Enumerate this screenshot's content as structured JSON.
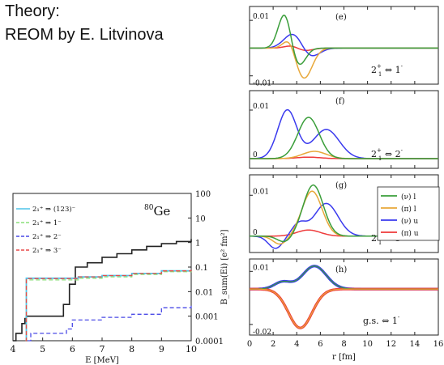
{
  "header": {
    "line1": "Theory:",
    "line2": "REOM by E. Litvinova"
  },
  "chart_data": [
    {
      "type": "line",
      "panel": "left",
      "title": "80Ge",
      "title_parts": {
        "sup": "80",
        "main": "Ge"
      },
      "xlabel": "E [MeV]",
      "ylabel": "B_sum(Ei) [e² fm²]",
      "xlim": [
        4,
        10
      ],
      "ylim": [
        0.0001,
        100
      ],
      "yscale": "log",
      "x_ticks": [
        "4",
        "5",
        "6",
        "7",
        "8",
        "9",
        "10"
      ],
      "y_ticks": [
        "0.0001",
        "0.001",
        "0.01",
        "0.1",
        "1",
        "10",
        "100"
      ],
      "colors": {
        "total": "#222222",
        "s123": "#4fc3e8",
        "s1": "#8be07a",
        "s2": "#4a4ae6",
        "s3": "#e84a4a"
      },
      "legend": [
        "2₁⁺ ⇒ (123)⁻",
        "2₁⁺ ⇒ 1⁻",
        "2₁⁺ ⇒ 2⁻",
        "2₁⁺ ⇒ 3⁻"
      ],
      "series": [
        {
          "key": "total",
          "x": [
            4.0,
            4.1,
            4.3,
            4.4,
            4.45,
            5.7,
            5.9,
            6.1,
            6.5,
            7.0,
            7.5,
            8.0,
            8.5,
            9.0,
            9.5,
            10.0
          ],
          "y": [
            0.0001,
            0.0002,
            0.0005,
            0.0008,
            0.001,
            0.003,
            0.02,
            0.1,
            0.15,
            0.25,
            0.35,
            0.5,
            0.7,
            0.9,
            1.1,
            1.4
          ]
        },
        {
          "key": "s123",
          "x": [
            4.42,
            4.45,
            5.8,
            6.2,
            7.0,
            8.0,
            9.0,
            10.0
          ],
          "y": [
            0.0001,
            0.035,
            0.035,
            0.04,
            0.045,
            0.055,
            0.07,
            0.08
          ]
        },
        {
          "key": "s1",
          "x": [
            4.42,
            4.45,
            5.8,
            6.2,
            7.0,
            8.0,
            9.0,
            10.0
          ],
          "y": [
            0.0001,
            0.03,
            0.03,
            0.035,
            0.04,
            0.05,
            0.065,
            0.075
          ]
        },
        {
          "key": "s2",
          "x": [
            4.5,
            4.6,
            5.0,
            5.8,
            6.0,
            7.0,
            8.0,
            9.0,
            10.0
          ],
          "y": [
            0.0001,
            0.0002,
            0.0002,
            0.0003,
            0.0007,
            0.0009,
            0.0012,
            0.0022,
            0.0028
          ]
        },
        {
          "key": "s3",
          "x": [
            4.42,
            4.45,
            5.8,
            6.2,
            7.0,
            8.0,
            9.0,
            10.0
          ],
          "y": [
            0.0001,
            0.034,
            0.034,
            0.04,
            0.045,
            0.055,
            0.07,
            0.08
          ]
        }
      ]
    },
    {
      "type": "line",
      "panel": "right",
      "xlabel": "r [fm]",
      "xlim": [
        0,
        16
      ],
      "x_ticks": [
        "0",
        "2",
        "4",
        "6",
        "8",
        "10",
        "12",
        "14",
        "16"
      ],
      "colors": {
        "nu_l": "#3a9e3a",
        "pi_l": "#e8a83a",
        "nu_u": "#3a3aee",
        "pi_u": "#ee3a3a"
      },
      "legend": [
        "(ν) l",
        "(π) l",
        "(ν) u",
        "(π) u"
      ],
      "subpanels": [
        {
          "label": "(e)",
          "transition": "2₁⁺ ⇔ 1⁻",
          "trans_parts": {
            "left": "2",
            "sup": "+",
            "sub": "1",
            "right": "1",
            "rsup": "-"
          },
          "ylim": [
            -0.013,
            0.015
          ],
          "y_ticks": [
            "0.01",
            "-0.01"
          ],
          "curves": [
            {
              "key": "nu_l",
              "peaks": [
                [
                  3.0,
                  0.013,
                  0.55
                ],
                [
                  4.1,
                  -0.007,
                  0.6
                ]
              ]
            },
            {
              "key": "pi_l",
              "peaks": [
                [
                  3.4,
                  0.004,
                  0.5
                ],
                [
                  4.6,
                  -0.011,
                  0.7
                ]
              ]
            },
            {
              "key": "nu_u",
              "peaks": [
                [
                  3.8,
                  0.006,
                  0.8
                ],
                [
                  5.0,
                  -0.004,
                  0.8
                ]
              ]
            },
            {
              "key": "pi_u",
              "peaks": [
                [
                  3.6,
                  0.001,
                  0.6
                ],
                [
                  4.6,
                  -0.001,
                  0.7
                ]
              ]
            }
          ]
        },
        {
          "label": "(f)",
          "transition": "2₁⁺ ⇔ 2⁻",
          "trans_parts": {
            "left": "2",
            "sup": "+",
            "sub": "1",
            "right": "2",
            "rsup": "-"
          },
          "ylim": [
            -0.002,
            0.014
          ],
          "y_ticks": [
            "0.01",
            "0"
          ],
          "curves": [
            {
              "key": "nu_l",
              "peaks": [
                [
                  5.0,
                  0.0085,
                  0.9
                ]
              ]
            },
            {
              "key": "pi_l",
              "peaks": [
                [
                  5.5,
                  0.0015,
                  1.0
                ]
              ]
            },
            {
              "key": "nu_u",
              "peaks": [
                [
                  3.2,
                  0.01,
                  0.8
                ],
                [
                  6.5,
                  0.006,
                  1.1
                ]
              ]
            },
            {
              "key": "pi_u",
              "peaks": [
                [
                  5.0,
                  0.0003,
                  1.0
                ]
              ]
            }
          ]
        },
        {
          "label": "(g)",
          "transition": "2₁⁺ ⇔ 3⁻",
          "trans_parts": {
            "left": "2",
            "sup": "+",
            "sub": "1",
            "right": "3",
            "rsup": "-"
          },
          "ylim": [
            -0.004,
            0.015
          ],
          "y_ticks": [
            "0.01",
            "0"
          ],
          "curves": [
            {
              "key": "nu_l",
              "peaks": [
                [
                  5.4,
                  0.0125,
                  0.85
                ],
                [
                  3.0,
                  -0.0015,
                  0.6
                ]
              ]
            },
            {
              "key": "pi_l",
              "peaks": [
                [
                  5.3,
                  0.011,
                  0.85
                ],
                [
                  2.6,
                  -0.002,
                  0.6
                ]
              ]
            },
            {
              "key": "nu_u",
              "peaks": [
                [
                  6.5,
                  0.008,
                  1.0
                ],
                [
                  2.2,
                  -0.003,
                  0.6
                ],
                [
                  4.2,
                  0.003,
                  0.6
                ]
              ]
            },
            {
              "key": "pi_u",
              "peaks": [
                [
                  5.0,
                  0.0015,
                  1.0
                ]
              ]
            }
          ]
        },
        {
          "label": "(h)",
          "transition": "g.s. ⇔ 1⁻",
          "trans_parts": {
            "left": "g.s.",
            "sup": "",
            "sub": "",
            "right": "1",
            "rsup": "-"
          },
          "ylim": [
            -0.026,
            0.017
          ],
          "y_ticks": [
            "0.01",
            "-0.02"
          ],
          "curves": [
            {
              "key": "nu_l",
              "peaks": [
                [
                  5.5,
                  0.013,
                  1.0
                ],
                [
                  2.8,
                  0.004,
                  0.7
                ]
              ]
            },
            {
              "key": "pi_l",
              "peaks": [
                [
                  4.3,
                  -0.022,
                  1.0
                ]
              ]
            },
            {
              "key": "nu_u",
              "peaks": [
                [
                  5.5,
                  0.013,
                  1.0
                ],
                [
                  2.8,
                  0.004,
                  0.7
                ]
              ]
            },
            {
              "key": "pi_u",
              "peaks": [
                [
                  4.3,
                  -0.022,
                  1.0
                ]
              ]
            }
          ]
        }
      ]
    }
  ]
}
